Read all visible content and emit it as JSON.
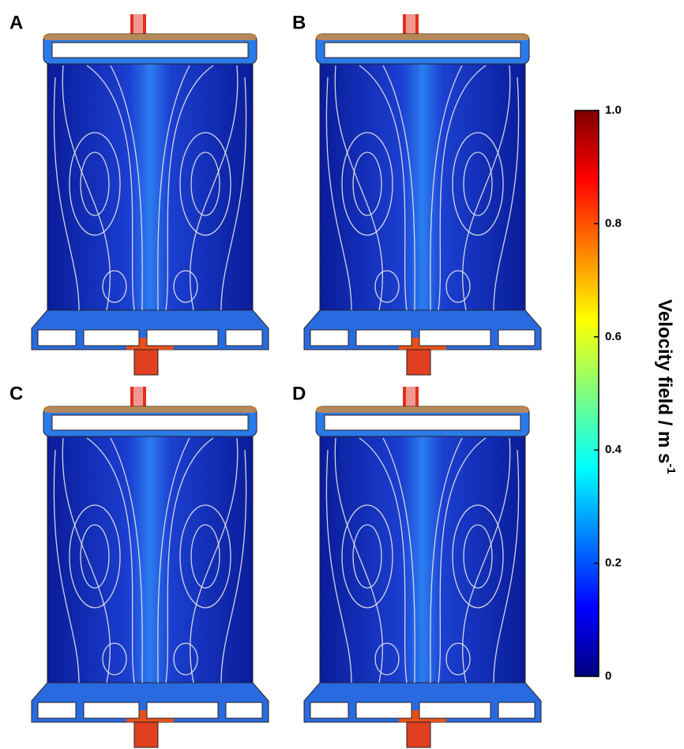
{
  "panels": [
    {
      "label": "A"
    },
    {
      "label": "B"
    },
    {
      "label": "C"
    },
    {
      "label": "D"
    }
  ],
  "colorbar": {
    "label": "Velocity field / m s",
    "label_superscript": "-1",
    "lim": [
      0,
      1
    ],
    "ticks": [
      0,
      0.2,
      0.4,
      0.6,
      0.8,
      {
        "value": 1,
        "label": "1.0"
      }
    ]
  }
}
